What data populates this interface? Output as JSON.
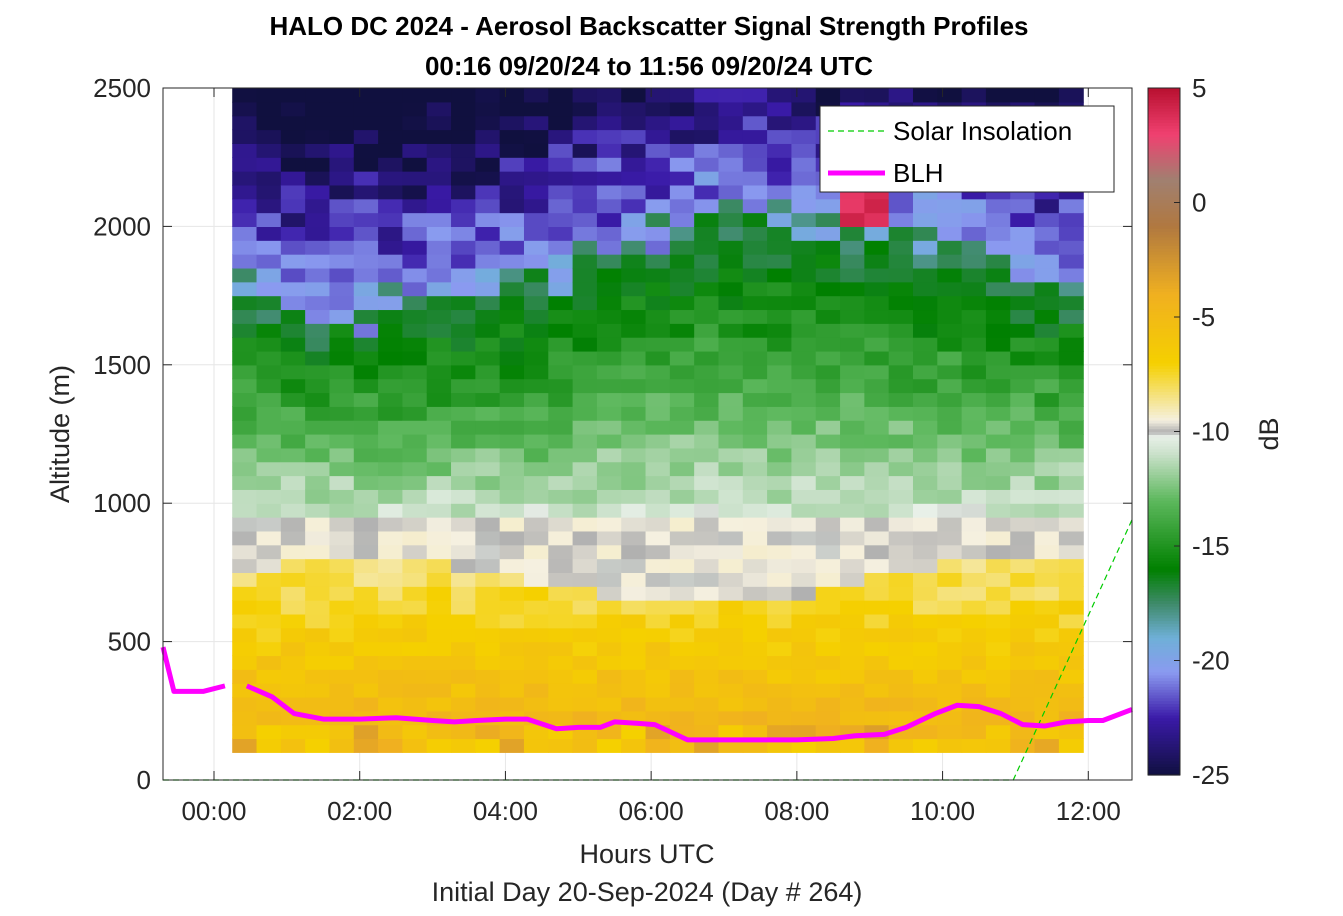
{
  "chart_data": {
    "type": "heatmap",
    "title": "HALO DC 2024 - Aerosol Backscatter Signal Strength Profiles",
    "subtitle": "00:16 09/20/24 to 11:56 09/20/24  UTC",
    "xlabel": "Hours UTC",
    "xlabel2": "Initial Day 20-Sep-2024 (Day # 264)",
    "ylabel": "Altitude (m)",
    "colorbar_label": "dB",
    "xlim": [
      -0.7,
      12.6
    ],
    "ylim": [
      0,
      2500
    ],
    "x_ticks": [
      0,
      2,
      4,
      6,
      8,
      10,
      12
    ],
    "x_tick_labels": [
      "00:00",
      "02:00",
      "04:00",
      "06:00",
      "08:00",
      "10:00",
      "12:00"
    ],
    "y_ticks": [
      0,
      500,
      1000,
      1500,
      2000,
      2500
    ],
    "y_tick_labels": [
      "0",
      "500",
      "1000",
      "1500",
      "2000",
      "2500"
    ],
    "clim": [
      -25,
      5
    ],
    "colorbar_ticks": [
      5,
      0,
      -5,
      -10,
      -15,
      -20,
      -25
    ],
    "colorbar_tick_labels": [
      "5",
      "0",
      "-5",
      "-10",
      "-15",
      "-20",
      "-25"
    ],
    "grid": true,
    "legend_position": "top-right",
    "heatmap": {
      "x_start": 0.25,
      "x_end": 11.93,
      "columns": 35,
      "y_start": 100,
      "y_end": 2500,
      "rows": 48,
      "colormap_stops": [
        {
          "value": -25,
          "color": "#10103f"
        },
        {
          "value": -22.5,
          "color": "#3a1aa8"
        },
        {
          "value": -20.5,
          "color": "#8a9af0"
        },
        {
          "value": -19,
          "color": "#6fb0d8"
        },
        {
          "value": -17.5,
          "color": "#3f8a6a"
        },
        {
          "value": -16,
          "color": "#008000"
        },
        {
          "value": -13,
          "color": "#5db85d"
        },
        {
          "value": -11,
          "color": "#c8e0c8"
        },
        {
          "value": -10.2,
          "color": "#e8f0e8"
        },
        {
          "value": -10,
          "color": "#b0b0b0"
        },
        {
          "value": -9.5,
          "color": "#f5f0e0"
        },
        {
          "value": -7,
          "color": "#f5d000"
        },
        {
          "value": -4,
          "color": "#f0b020"
        },
        {
          "value": -1,
          "color": "#b07840"
        },
        {
          "value": 1,
          "color": "#a08070"
        },
        {
          "value": 3,
          "color": "#f04070"
        },
        {
          "value": 5,
          "color": "#b81030"
        }
      ]
    },
    "series": [
      {
        "name": "Solar Insolation",
        "style": "dashed",
        "color": "#00cc00",
        "x": [
          -0.7,
          10.97,
          12.6
        ],
        "y": [
          0,
          0,
          940
        ]
      },
      {
        "name": "BLH",
        "style": "solid",
        "color": "#ff00ff",
        "segments": [
          {
            "x": [
              -0.7,
              -0.55,
              -0.15,
              0.15
            ],
            "y": [
              480,
              320,
              320,
              340
            ]
          },
          {
            "x": [
              0.45,
              0.8,
              1.1,
              1.5,
              2.0,
              2.5,
              3.0,
              3.3,
              3.6,
              4.0,
              4.3,
              4.7,
              5.0,
              5.3,
              5.5,
              5.8,
              6.05,
              6.5,
              7.0,
              7.5,
              8.0,
              8.5,
              8.8,
              9.2,
              9.5,
              9.9,
              10.2,
              10.5,
              10.8,
              11.1,
              11.4,
              11.7,
              12.0,
              12.2,
              12.6
            ],
            "y": [
              340,
              300,
              240,
              220,
              220,
              225,
              215,
              210,
              215,
              220,
              220,
              185,
              190,
              190,
              210,
              205,
              200,
              145,
              145,
              145,
              145,
              150,
              160,
              165,
              190,
              240,
              270,
              265,
              240,
              200,
              195,
              210,
              215,
              215,
              255
            ]
          }
        ]
      }
    ]
  }
}
